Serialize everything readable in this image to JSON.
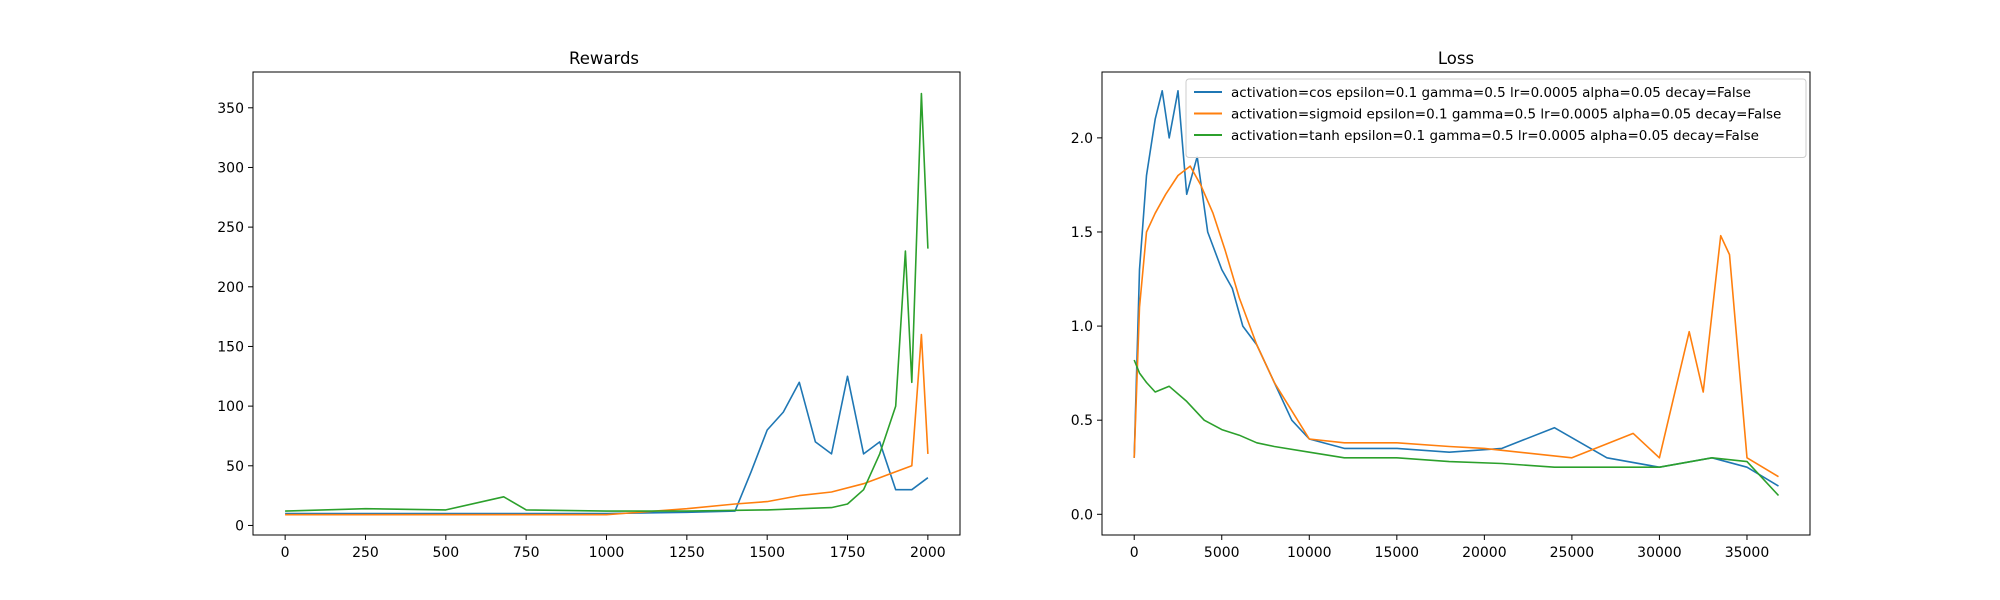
{
  "colors": {
    "series_1": "#1f77b4",
    "series_2": "#ff7f0e",
    "series_3": "#2ca02c"
  },
  "chart_data": [
    {
      "type": "line",
      "title": "Rewards",
      "xlabel": "",
      "ylabel": "",
      "xlim": [
        -100,
        2100
      ],
      "ylim": [
        -8,
        380
      ],
      "xticks": [
        0,
        250,
        500,
        750,
        1000,
        1250,
        1500,
        1750,
        2000
      ],
      "yticks": [
        0,
        50,
        100,
        150,
        200,
        250,
        300,
        350
      ],
      "grid": false,
      "legend": null,
      "series": [
        {
          "color_key": "series_1",
          "x": [
            0,
            250,
            500,
            750,
            1000,
            1250,
            1400,
            1450,
            1500,
            1550,
            1600,
            1650,
            1700,
            1750,
            1800,
            1850,
            1900,
            1950,
            2000
          ],
          "y": [
            10,
            10,
            10,
            10,
            10,
            11,
            12,
            45,
            80,
            95,
            120,
            70,
            60,
            125,
            60,
            70,
            30,
            30,
            40
          ]
        },
        {
          "color_key": "series_2",
          "x": [
            0,
            250,
            500,
            750,
            1000,
            1250,
            1400,
            1500,
            1600,
            1700,
            1800,
            1850,
            1900,
            1950,
            1980,
            2000
          ],
          "y": [
            9,
            9,
            9,
            9,
            9,
            14,
            18,
            20,
            25,
            28,
            35,
            40,
            45,
            50,
            160,
            60
          ]
        },
        {
          "color_key": "series_3",
          "x": [
            0,
            250,
            500,
            680,
            750,
            1000,
            1250,
            1500,
            1600,
            1700,
            1750,
            1800,
            1850,
            1900,
            1930,
            1950,
            1980,
            2000
          ],
          "y": [
            12,
            14,
            13,
            24,
            13,
            12,
            12,
            13,
            14,
            15,
            18,
            30,
            60,
            100,
            230,
            120,
            362,
            232
          ]
        }
      ]
    },
    {
      "type": "line",
      "title": "Loss",
      "xlabel": "",
      "ylabel": "",
      "xlim": [
        -1840,
        38600
      ],
      "ylim": [
        -0.11,
        2.35
      ],
      "xticks": [
        0,
        5000,
        10000,
        15000,
        20000,
        25000,
        30000,
        35000
      ],
      "yticks": [
        0.0,
        0.5,
        1.0,
        1.5,
        2.0
      ],
      "grid": false,
      "legend": "top-right",
      "series": [
        {
          "name": "activation=cos epsilon=0.1 gamma=0.5 lr=0.0005 alpha=0.05 decay=False",
          "color_key": "series_1",
          "x": [
            0,
            300,
            700,
            1200,
            1600,
            2000,
            2500,
            3000,
            3600,
            4200,
            5000,
            5600,
            6200,
            7000,
            8000,
            9000,
            10000,
            12000,
            15000,
            18000,
            21000,
            24000,
            27000,
            30000,
            33000,
            35000,
            36800
          ],
          "y": [
            0.3,
            1.3,
            1.8,
            2.1,
            2.25,
            2.0,
            2.25,
            1.7,
            1.9,
            1.5,
            1.3,
            1.2,
            1.0,
            0.9,
            0.7,
            0.5,
            0.4,
            0.35,
            0.35,
            0.33,
            0.35,
            0.46,
            0.3,
            0.25,
            0.3,
            0.25,
            0.15
          ]
        },
        {
          "name": "activation=sigmoid epsilon=0.1 gamma=0.5 lr=0.0005 alpha=0.05 decay=False",
          "color_key": "series_2",
          "x": [
            0,
            300,
            700,
            1200,
            1800,
            2500,
            3200,
            3800,
            4500,
            5200,
            6000,
            7000,
            8000,
            9000,
            10000,
            12000,
            15000,
            18000,
            20000,
            25000,
            28500,
            30000,
            31700,
            32500,
            33500,
            34000,
            35000,
            36800
          ],
          "y": [
            0.3,
            1.1,
            1.5,
            1.6,
            1.7,
            1.8,
            1.85,
            1.75,
            1.6,
            1.4,
            1.15,
            0.9,
            0.7,
            0.55,
            0.4,
            0.38,
            0.38,
            0.36,
            0.35,
            0.3,
            0.43,
            0.3,
            0.97,
            0.65,
            1.48,
            1.38,
            0.3,
            0.2
          ]
        },
        {
          "name": "activation=tanh epsilon=0.1 gamma=0.5 lr=0.0005 alpha=0.05 decay=False",
          "color_key": "series_3",
          "x": [
            0,
            300,
            700,
            1200,
            2000,
            3000,
            4000,
            5000,
            6000,
            7000,
            8000,
            10000,
            12000,
            15000,
            18000,
            21000,
            24000,
            27000,
            30000,
            33000,
            35000,
            36800
          ],
          "y": [
            0.82,
            0.75,
            0.7,
            0.65,
            0.68,
            0.6,
            0.5,
            0.45,
            0.42,
            0.38,
            0.36,
            0.33,
            0.3,
            0.3,
            0.28,
            0.27,
            0.25,
            0.25,
            0.25,
            0.3,
            0.28,
            0.1
          ]
        }
      ]
    }
  ]
}
